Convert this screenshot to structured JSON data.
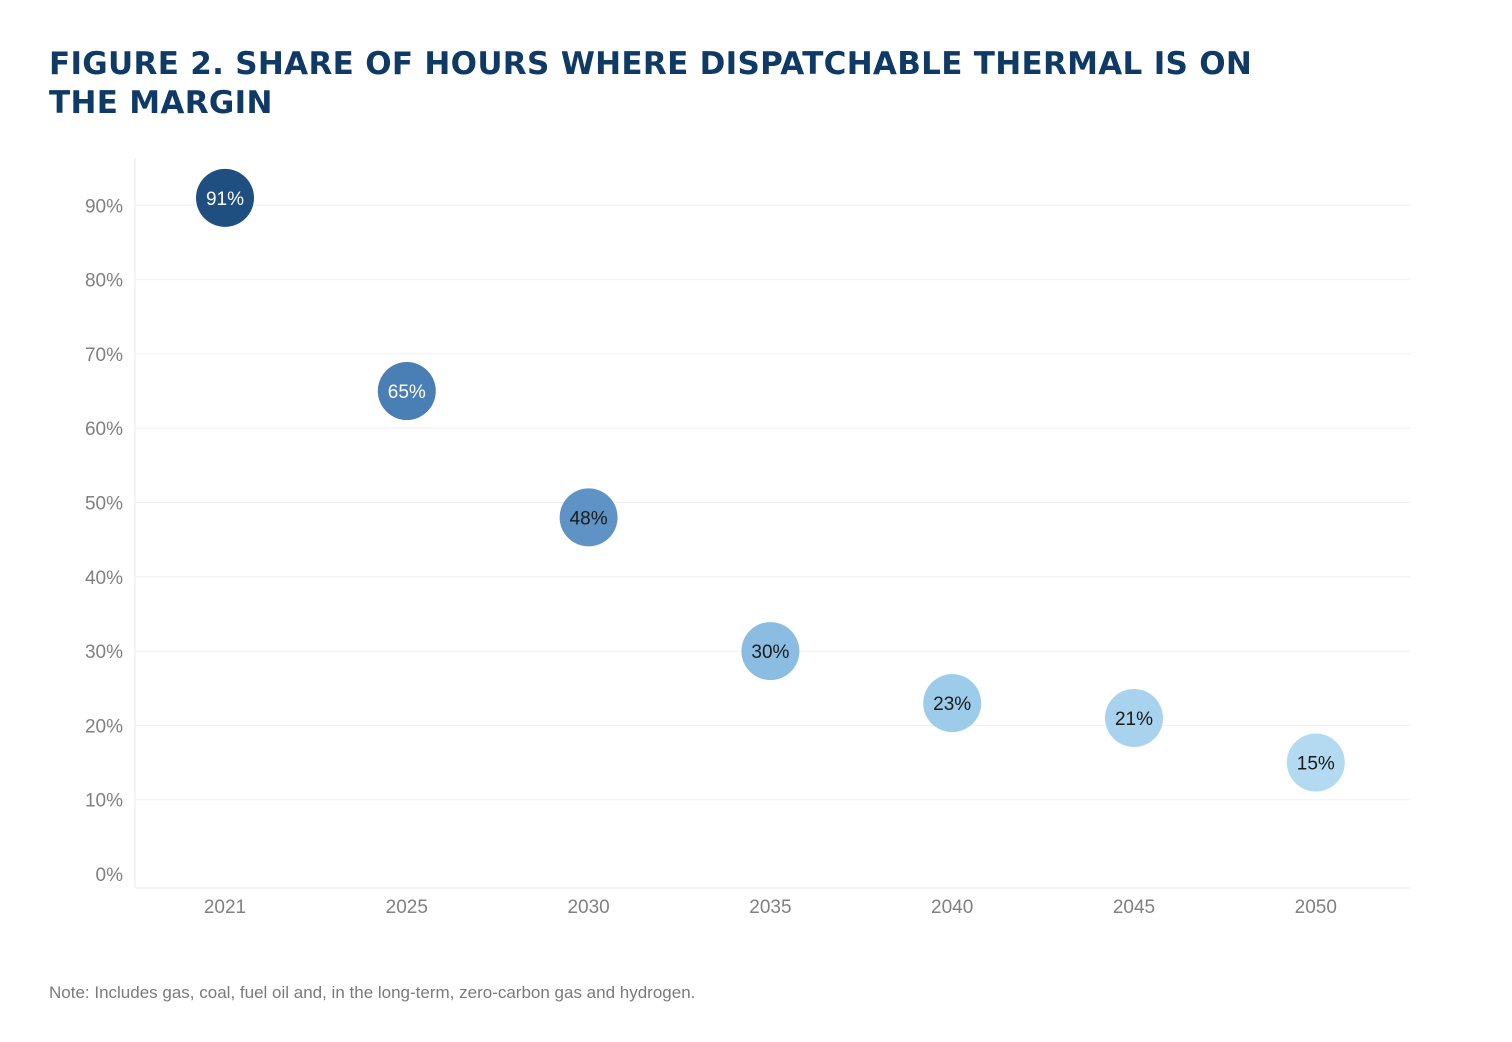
{
  "chart_data": {
    "type": "scatter",
    "title": "FIGURE 2. SHARE OF HOURS WHERE DISPATCHABLE THERMAL IS ON THE MARGIN",
    "categories": [
      "2021",
      "2025",
      "2030",
      "2035",
      "2040",
      "2045",
      "2050"
    ],
    "values": [
      91,
      65,
      48,
      30,
      23,
      21,
      15
    ],
    "labels": [
      "91%",
      "65%",
      "48%",
      "30%",
      "23%",
      "21%",
      "15%"
    ],
    "point_colors": [
      "#1f4e80",
      "#4a7fb5",
      "#5f93c6",
      "#8bbde2",
      "#9dcbea",
      "#a8d2ee",
      "#b4daf2"
    ],
    "label_colors": [
      "#ffffff",
      "#ffffff",
      "#1a1a1a",
      "#1a1a1a",
      "#1a1a1a",
      "#1a1a1a",
      "#1a1a1a"
    ],
    "yticks": [
      "0%",
      "10%",
      "20%",
      "30%",
      "40%",
      "50%",
      "60%",
      "70%",
      "80%",
      "90%"
    ],
    "ylim": [
      0,
      100
    ],
    "grid": true,
    "xlabel": "",
    "ylabel": ""
  },
  "note": "Note: Includes gas, coal, fuel oil and, in the long-term, zero-carbon gas and hydrogen."
}
